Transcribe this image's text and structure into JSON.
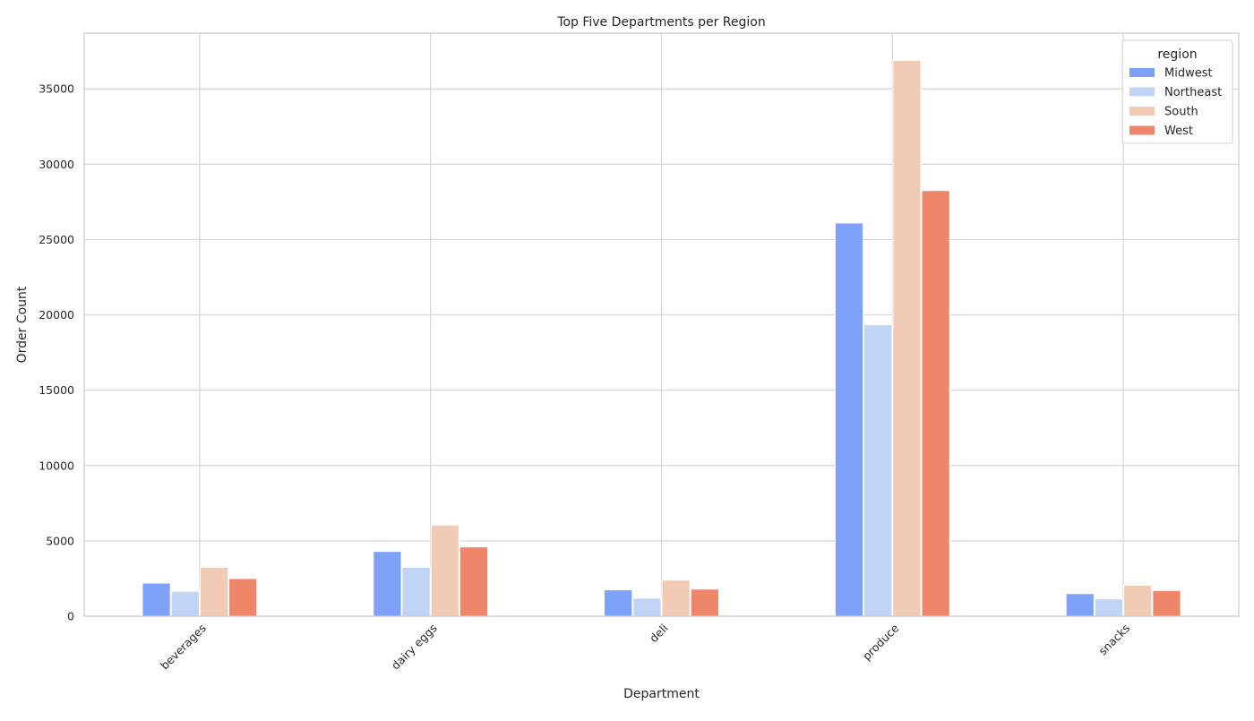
{
  "chart_data": {
    "type": "bar",
    "title": "Top Five Departments per Region",
    "xlabel": "Department",
    "ylabel": "Order Count",
    "categories": [
      "beverages",
      "dairy eggs",
      "deli",
      "produce",
      "snacks"
    ],
    "series": [
      {
        "name": "Midwest",
        "color": "#7da2f8",
        "values": [
          2200,
          4300,
          1750,
          26100,
          1500
        ]
      },
      {
        "name": "Northeast",
        "color": "#c0d4f5",
        "values": [
          1650,
          3250,
          1200,
          19350,
          1150
        ]
      },
      {
        "name": "South",
        "color": "#f2cbb7",
        "values": [
          3250,
          6050,
          2400,
          36900,
          2050
        ]
      },
      {
        "name": "West",
        "color": "#ee8669",
        "values": [
          2500,
          4600,
          1800,
          28250,
          1700
        ]
      }
    ],
    "ylim": [
      0,
      38700
    ],
    "yticks": [
      0,
      5000,
      10000,
      15000,
      20000,
      25000,
      30000,
      35000
    ],
    "grid": true,
    "legend": {
      "title": "region",
      "placement": "top-right"
    }
  }
}
